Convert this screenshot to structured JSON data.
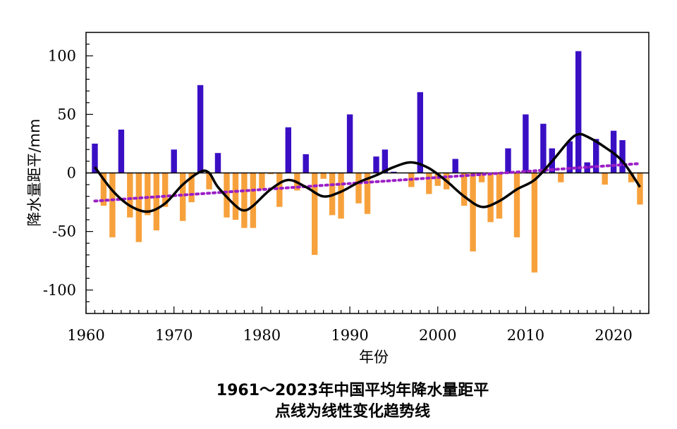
{
  "chart_data": {
    "type": "bar",
    "title": "1961～2023年中国平均年降水量距平",
    "subtitle": "点线为线性变化趋势线",
    "xlabel": "年份",
    "ylabel": "降水量距平/mm",
    "xlim": [
      1960,
      2024
    ],
    "ylim": [
      -120,
      120
    ],
    "x_ticks": [
      1960,
      1970,
      1980,
      1990,
      2000,
      2010,
      2020
    ],
    "y_ticks": [
      -100,
      -50,
      0,
      50,
      100
    ],
    "grid": false,
    "colors": {
      "positive": "#3a0fc4",
      "negative": "#f7a13c",
      "smooth": "#000000",
      "trend": "#9b1fc6"
    },
    "series": [
      {
        "years": [
          1961,
          1962,
          1963,
          1964,
          1965,
          1966,
          1967,
          1968,
          1969,
          1970,
          1971,
          1972,
          1973,
          1974,
          1975,
          1976,
          1977,
          1978,
          1979,
          1980,
          1981,
          1982,
          1983,
          1984,
          1985,
          1986,
          1987,
          1988,
          1989,
          1990,
          1991,
          1992,
          1993,
          1994,
          1995,
          1996,
          1997,
          1998,
          1999,
          2000,
          2001,
          2002,
          2003,
          2004,
          2005,
          2006,
          2007,
          2008,
          2009,
          2010,
          2011,
          2012,
          2013,
          2014,
          2015,
          2016,
          2017,
          2018,
          2019,
          2020,
          2021,
          2022,
          2023
        ],
        "values": [
          25,
          -28,
          -55,
          37,
          -38,
          -59,
          -36,
          -49,
          -29,
          20,
          -41,
          -25,
          75,
          -14,
          17,
          -38,
          -40,
          -47,
          -47,
          -14,
          -1,
          -29,
          39,
          -15,
          16,
          -70,
          -5,
          -36,
          -39,
          50,
          -26,
          -35,
          14,
          20,
          1,
          0,
          -12,
          69,
          -18,
          -11,
          -14,
          12,
          -28,
          -67,
          -8,
          -42,
          -39,
          21,
          -55,
          50,
          -85,
          42,
          21,
          -8,
          27,
          104,
          9,
          29,
          -10,
          36,
          28,
          -8,
          -27
        ]
      },
      {
        "years": [
          1961,
          1963,
          1965,
          1967,
          1969,
          1971,
          1973,
          1974,
          1975,
          1977,
          1978,
          1979,
          1981,
          1983,
          1985,
          1987,
          1989,
          1991,
          1993,
          1995,
          1997,
          1999,
          2001,
          2003,
          2005,
          2007,
          2009,
          2011,
          2013,
          2015,
          2016,
          2017,
          2019,
          2021,
          2023
        ],
        "values": [
          5,
          -15,
          -28,
          -33,
          -26,
          -10,
          1,
          0,
          -12,
          -28,
          -32,
          -28,
          -14,
          -6,
          -12,
          -20,
          -16,
          -8,
          -2,
          5,
          9,
          4,
          -7,
          -20,
          -29,
          -24,
          -14,
          -6,
          10,
          28,
          33,
          31,
          22,
          10,
          -12
        ]
      },
      {
        "years": [
          1961,
          2023
        ],
        "values": [
          -24,
          8
        ]
      }
    ]
  },
  "caption": {
    "line1": "1961～2023年中国平均年降水量距平",
    "line2": "点线为线性变化趋势线"
  }
}
